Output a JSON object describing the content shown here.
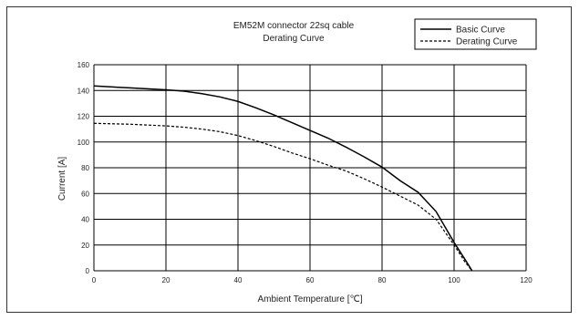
{
  "chart_data": {
    "type": "line",
    "title": "EM52M connector 22sq cable",
    "subtitle": "Derating Curve",
    "xlabel": "Ambient Temperature [℃]",
    "ylabel": "Current [A]",
    "xlim": [
      0,
      120
    ],
    "ylim": [
      0,
      160
    ],
    "xticks": [
      0,
      20,
      40,
      60,
      80,
      100,
      120
    ],
    "yticks": [
      0,
      20,
      40,
      60,
      80,
      100,
      120,
      140,
      160
    ],
    "grid": true,
    "legend_position": "top-right",
    "series": [
      {
        "name": "Basic Curve",
        "style": "solid",
        "color": "#000000",
        "x": [
          0,
          10,
          20,
          25,
          30,
          35,
          40,
          45,
          50,
          55,
          60,
          65,
          70,
          75,
          80,
          85,
          90,
          95,
          100,
          103,
          105
        ],
        "y": [
          143.5,
          142,
          140.5,
          139.5,
          137.5,
          135,
          131.5,
          126.5,
          121,
          115,
          109,
          103,
          96,
          88.5,
          80.5,
          70,
          61,
          46,
          22,
          9,
          0
        ]
      },
      {
        "name": "Derating Curve",
        "style": "dashed",
        "color": "#000000",
        "x": [
          0,
          10,
          20,
          25,
          30,
          35,
          40,
          45,
          50,
          55,
          60,
          65,
          70,
          75,
          80,
          85,
          90,
          95,
          100,
          103,
          105
        ],
        "y": [
          114.5,
          113.8,
          112.5,
          111.5,
          110,
          108,
          105,
          101,
          96.5,
          91.5,
          87,
          82,
          77.5,
          71.5,
          65,
          58,
          51,
          40,
          20,
          7,
          0
        ]
      }
    ]
  }
}
